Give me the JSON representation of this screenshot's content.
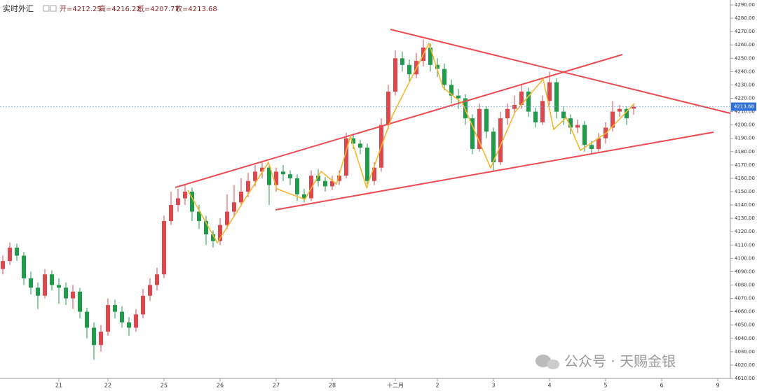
{
  "header": {
    "symbol": "实时外汇",
    "open": "开=4212.25",
    "high": "高=4216.22",
    "low": "低=4207.77",
    "close": "收=4213.68"
  },
  "watermark": "公众号 · 天赐金银",
  "chart_data": {
    "type": "candlestick",
    "categories": [
      null,
      null,
      null,
      null,
      null,
      null,
      null,
      null,
      "21",
      null,
      null,
      null,
      null,
      null,
      null,
      "22",
      null,
      null,
      null,
      null,
      null,
      null,
      null,
      "25",
      null,
      null,
      null,
      null,
      null,
      null,
      null,
      "26",
      null,
      null,
      null,
      null,
      null,
      null,
      null,
      "27",
      null,
      null,
      null,
      null,
      null,
      null,
      null,
      "28",
      null,
      null,
      null,
      null,
      null,
      null,
      null,
      null,
      "十二月",
      null,
      null,
      null,
      null,
      null,
      "2",
      null,
      null,
      null,
      null,
      null,
      null,
      null,
      "3",
      null,
      null,
      null,
      null,
      null,
      null,
      null,
      "4",
      null,
      null,
      null,
      null,
      null,
      null,
      null,
      "5",
      null,
      null,
      null,
      null,
      null,
      null,
      null,
      "6",
      null,
      null,
      null,
      null,
      null,
      null,
      null,
      "9"
    ],
    "open": [
      4092,
      4098,
      4108,
      4102,
      4085,
      4078,
      4072,
      4088,
      4080,
      4078,
      4070,
      4075,
      4060,
      4048,
      4035,
      4045,
      4065,
      4060,
      4052,
      4048,
      4058,
      4072,
      4080,
      4088,
      4128,
      4140,
      4145,
      4150,
      4135,
      4128,
      4118,
      4113,
      4125,
      4135,
      4142,
      4150,
      4158,
      4165,
      4168,
      4155,
      4165,
      4163,
      4160,
      4148,
      4145,
      4162,
      4158,
      4154,
      4158,
      4162,
      4190,
      4186,
      4183,
      4158,
      4168,
      4200,
      4225,
      4250,
      4245,
      4238,
      4248,
      4258,
      4245,
      4242,
      4230,
      4222,
      4220,
      4205,
      4182,
      4212,
      4195,
      4172,
      4205,
      4212,
      4215,
      4225,
      4210,
      4202,
      4218,
      4232,
      4210,
      4205,
      4198,
      4200,
      4185,
      4182,
      4190,
      4198,
      4210,
      4212,
      4212.25,
      null,
      null,
      null,
      null,
      null,
      null,
      null,
      null,
      null,
      null,
      null,
      null
    ],
    "high": [
      4102,
      4112,
      4111,
      4105,
      4090,
      4082,
      4092,
      4091,
      4085,
      4082,
      4080,
      4078,
      4063,
      4052,
      4050,
      4070,
      4069,
      4064,
      4056,
      4062,
      4077,
      4085,
      4093,
      4132,
      4150,
      4152,
      4155,
      4153,
      4140,
      4132,
      4121,
      4130,
      4148,
      4155,
      4160,
      4164,
      4170,
      4173,
      4170,
      4168,
      4170,
      4166,
      4163,
      4152,
      4166,
      4167,
      4161,
      4162,
      4166,
      4194,
      4193,
      4189,
      4186,
      4172,
      4205,
      4230,
      4256,
      4255,
      4249,
      4254,
      4264,
      4261,
      4250,
      4246,
      4234,
      4227,
      4223,
      4208,
      4216,
      4214,
      4198,
      4210,
      4216,
      4222,
      4230,
      4228,
      4213,
      4222,
      4240,
      4235,
      4214,
      4208,
      4204,
      4203,
      4188,
      4194,
      4202,
      4218,
      4215,
      4214,
      4216.22,
      null,
      null,
      null,
      null,
      null,
      null,
      null,
      null,
      null,
      null,
      null,
      null
    ],
    "low": [
      4088,
      4095,
      4098,
      4080,
      4073,
      4062,
      4070,
      4076,
      4066,
      4065,
      4062,
      4055,
      4040,
      4024,
      4030,
      4042,
      4055,
      4048,
      4042,
      4045,
      4055,
      4068,
      4076,
      4085,
      4125,
      4135,
      4140,
      4128,
      4122,
      4110,
      4108,
      4110,
      4122,
      4132,
      4139,
      4146,
      4154,
      4160,
      4140,
      4150,
      4158,
      4155,
      4143,
      4142,
      4143,
      4154,
      4150,
      4151,
      4155,
      4160,
      4182,
      4178,
      4153,
      4155,
      4165,
      4197,
      4222,
      4240,
      4232,
      4235,
      4244,
      4240,
      4236,
      4226,
      4216,
      4212,
      4200,
      4178,
      4180,
      4190,
      4166,
      4170,
      4200,
      4208,
      4212,
      4206,
      4198,
      4200,
      4215,
      4205,
      4200,
      4193,
      4194,
      4180,
      4178,
      4179,
      4186,
      4195,
      4206,
      4200,
      4207.77,
      null,
      null,
      null,
      null,
      null,
      null,
      null,
      null,
      null,
      null,
      null,
      null
    ],
    "close": [
      4098,
      4108,
      4102,
      4085,
      4078,
      4072,
      4088,
      4080,
      4078,
      4070,
      4075,
      4060,
      4048,
      4035,
      4045,
      4065,
      4060,
      4052,
      4048,
      4058,
      4072,
      4080,
      4088,
      4128,
      4140,
      4145,
      4150,
      4135,
      4128,
      4118,
      4113,
      4125,
      4135,
      4142,
      4150,
      4158,
      4165,
      4168,
      4155,
      4165,
      4163,
      4160,
      4148,
      4145,
      4162,
      4158,
      4154,
      4158,
      4162,
      4190,
      4186,
      4183,
      4158,
      4168,
      4200,
      4225,
      4250,
      4245,
      4238,
      4248,
      4258,
      4245,
      4242,
      4230,
      4222,
      4220,
      4205,
      4182,
      4212,
      4195,
      4172,
      4205,
      4212,
      4215,
      4225,
      4210,
      4202,
      4218,
      4232,
      4210,
      4205,
      4198,
      4200,
      4185,
      4182,
      4190,
      4198,
      4210,
      4212,
      4205,
      4213.68,
      null,
      null,
      null,
      null,
      null,
      null,
      null,
      null,
      null,
      null,
      null,
      null
    ],
    "up_color": "#e0474c",
    "down_color": "#1e9c49",
    "ylim": [
      4010,
      4293.67
    ],
    "yticks": [
      {
        "value": 4010,
        "label": "4010.00"
      },
      {
        "value": 4020,
        "label": "4020.00"
      },
      {
        "value": 4030,
        "label": "4030.00"
      },
      {
        "value": 4040,
        "label": "4040.00"
      },
      {
        "value": 4050,
        "label": "4050.00"
      },
      {
        "value": 4060,
        "label": "4060.00"
      },
      {
        "value": 4070,
        "label": "4070.00"
      },
      {
        "value": 4080,
        "label": "4080.00"
      },
      {
        "value": 4090,
        "label": "4090.00"
      },
      {
        "value": 4100,
        "label": "4100.00"
      },
      {
        "value": 4110,
        "label": "4110.00"
      },
      {
        "value": 4120,
        "label": "4120.00"
      },
      {
        "value": 4130,
        "label": "4130.00"
      },
      {
        "value": 4140,
        "label": "4140.00"
      },
      {
        "value": 4150,
        "label": "4150.00"
      },
      {
        "value": 4160,
        "label": "4160.00"
      },
      {
        "value": 4170,
        "label": "4170.00"
      },
      {
        "value": 4180,
        "label": "4180.00"
      },
      {
        "value": 4190,
        "label": "4190.00"
      },
      {
        "value": 4200,
        "label": "4200.00"
      },
      {
        "value": 4210,
        "label": "4210.00"
      },
      {
        "value": 4220,
        "label": "4220.00"
      },
      {
        "value": 4230,
        "label": "4230.00"
      },
      {
        "value": 4240,
        "label": "4240.00"
      },
      {
        "value": 4250,
        "label": "4250.00"
      },
      {
        "value": 4260,
        "label": "4260.00"
      },
      {
        "value": 4270,
        "label": "4270.00"
      },
      {
        "value": 4280,
        "label": "4280.00"
      },
      {
        "value": 4290,
        "label": "4290.00"
      }
    ]
  }
}
